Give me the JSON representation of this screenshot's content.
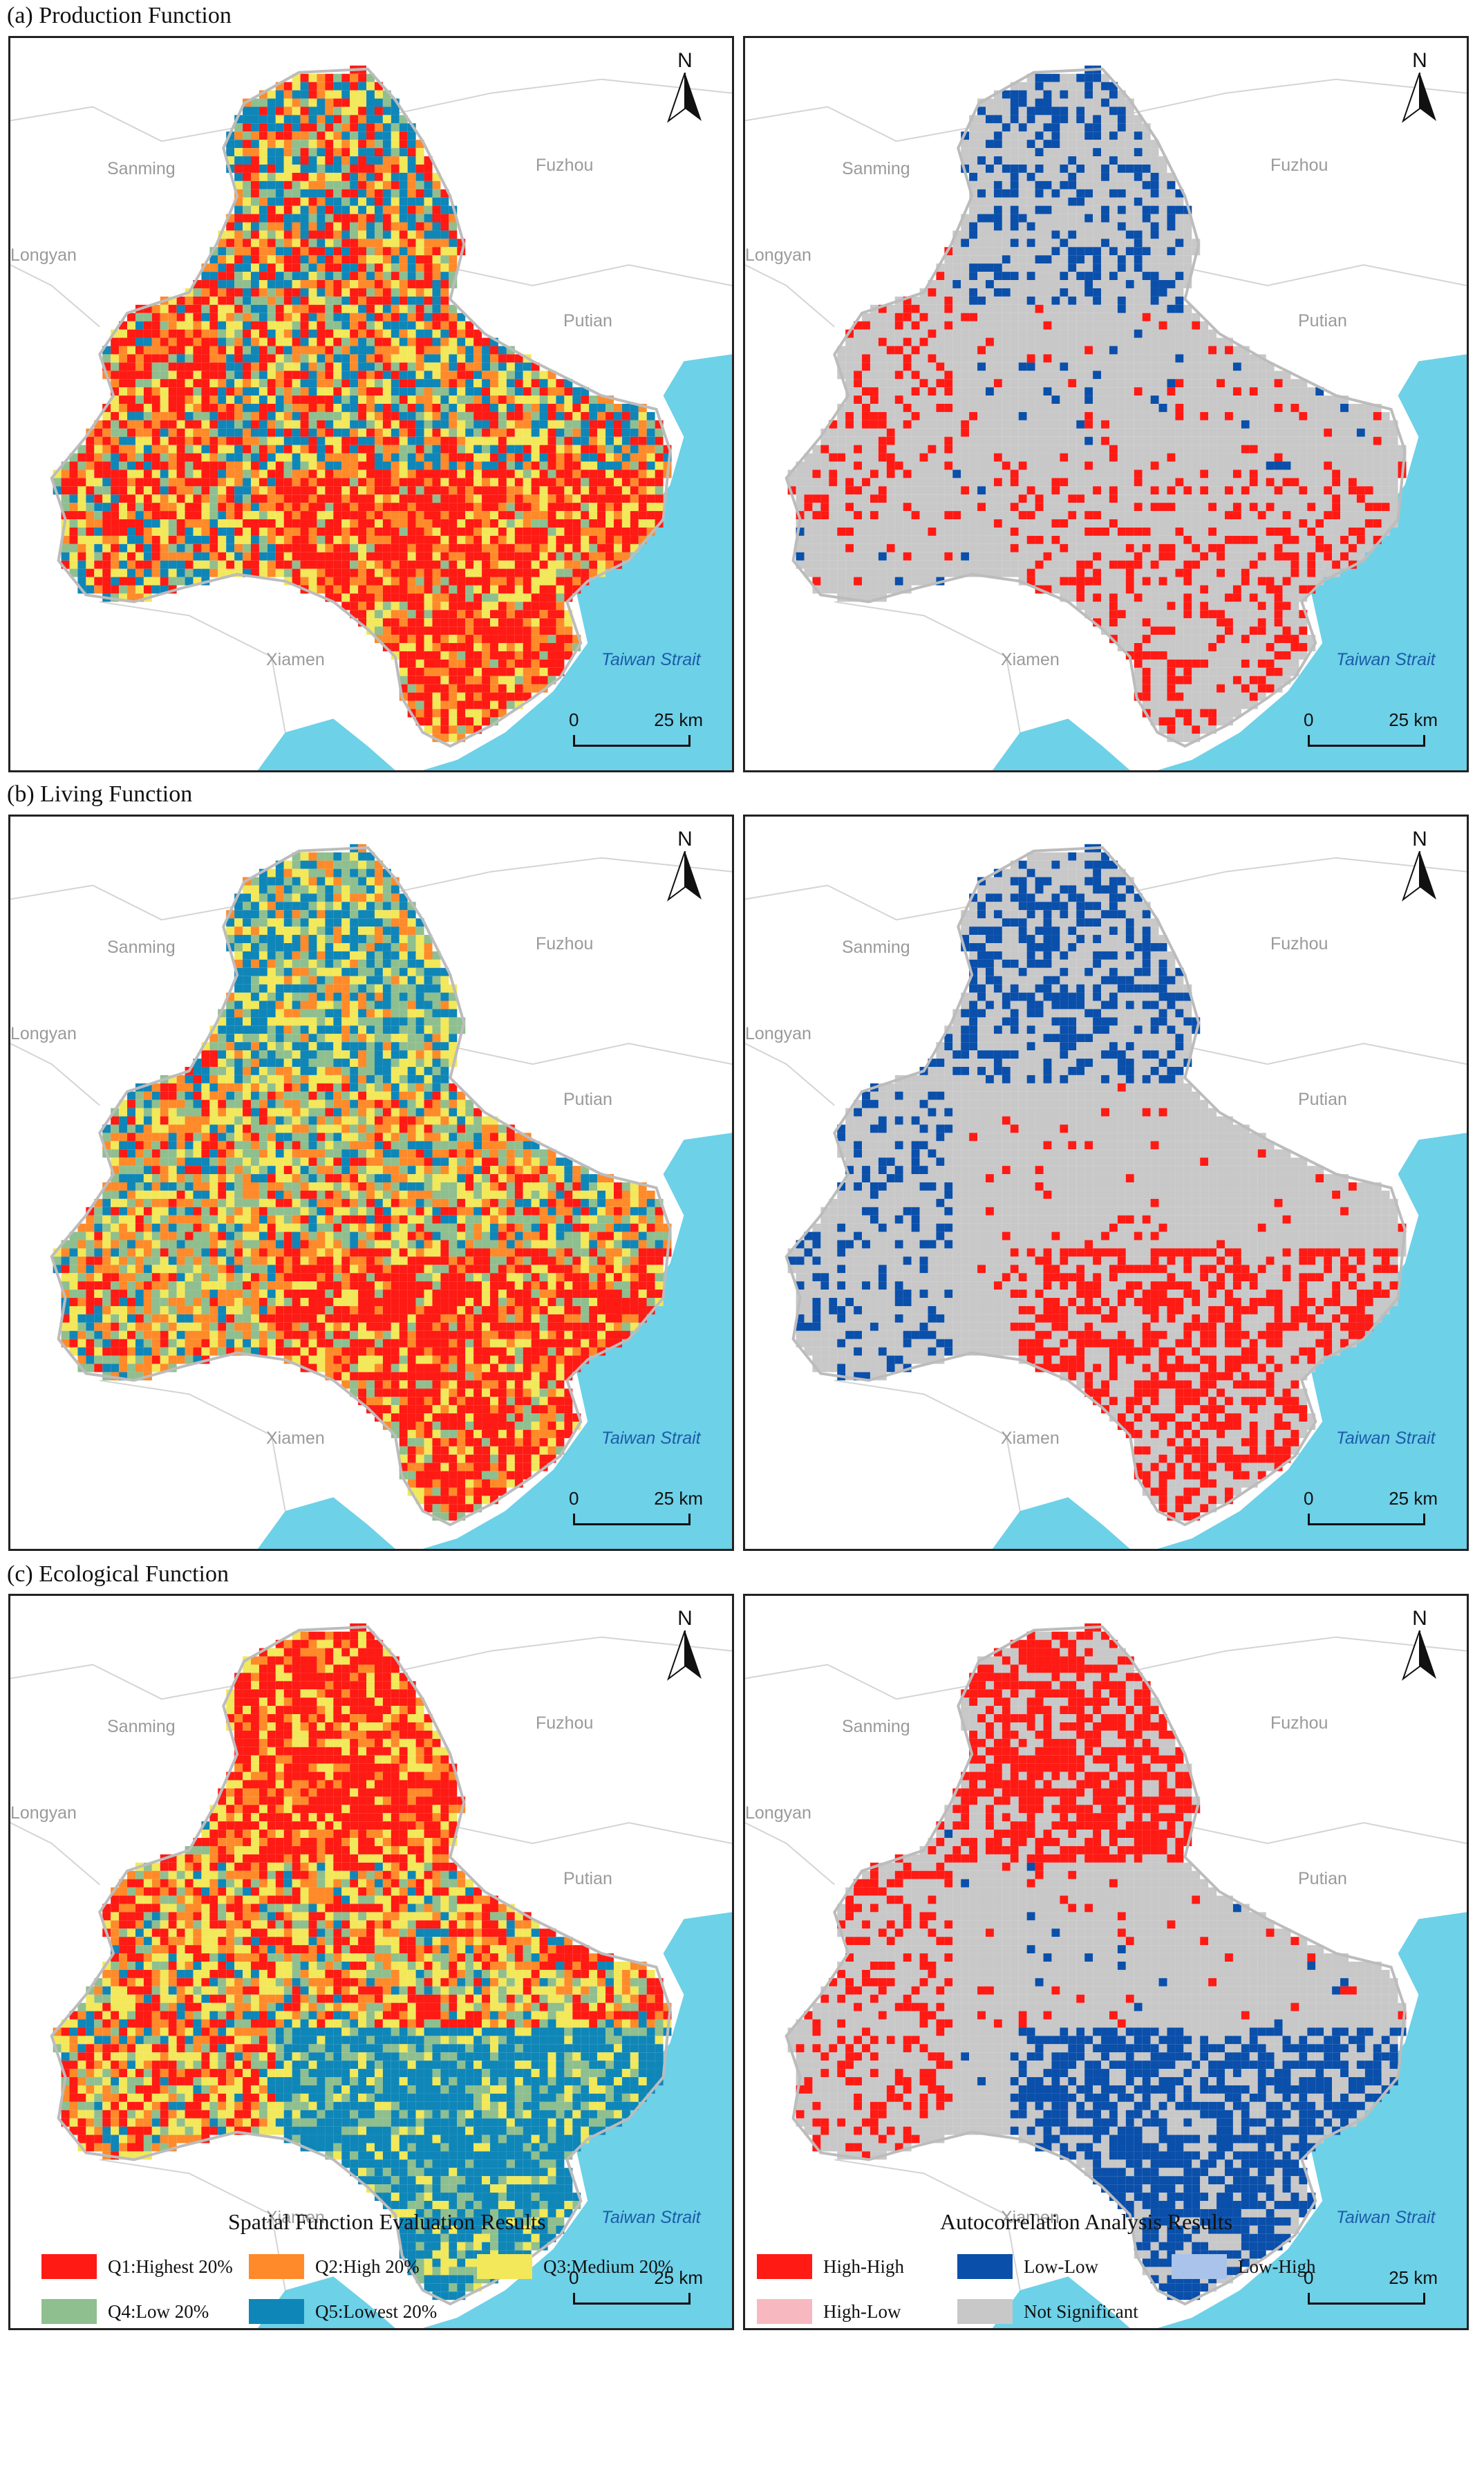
{
  "rows": [
    {
      "title": "(a) Production Function",
      "key": "production"
    },
    {
      "title": "(b) Living Function",
      "key": "living"
    },
    {
      "title": "(c) Ecological Function",
      "key": "ecological"
    }
  ],
  "map_labels": {
    "sanming": "Sanming",
    "fuzhou": "Fuzhou",
    "longyan": "Longyan",
    "putian": "Putian",
    "xiamen": "Xiamen",
    "taiwan_strait": "Taiwan Strait",
    "north": "N",
    "scale_zero": "0",
    "scale_end": "25 km"
  },
  "legend_left": {
    "title": "Spatial Function Evaluation Results",
    "items": [
      {
        "label": "Q1:Highest  20%",
        "color": "#ff1a14"
      },
      {
        "label": "Q2:High  20%",
        "color": "#ff8a2a"
      },
      {
        "label": "Q3:Medium 20%",
        "color": "#f2e85a"
      },
      {
        "label": "Q4:Low        20%",
        "color": "#8fbf8f"
      },
      {
        "label": "Q5:Lowest   20%",
        "color": "#0f86b8"
      }
    ]
  },
  "legend_right": {
    "title": "Autocorrelation Analysis Results",
    "items": [
      {
        "label": "High-High",
        "color": "#ff1a14"
      },
      {
        "label": "Low-Low",
        "color": "#0a4faa"
      },
      {
        "label": "Low-High",
        "color": "#a9c3ea"
      },
      {
        "label": "High-Low",
        "color": "#f7b9bf"
      },
      {
        "label": "Not Significant",
        "color": "#c8c8c8"
      }
    ]
  },
  "colors": {
    "sea": "#6dd1e8",
    "land_outline": "#bcbcbc"
  }
}
